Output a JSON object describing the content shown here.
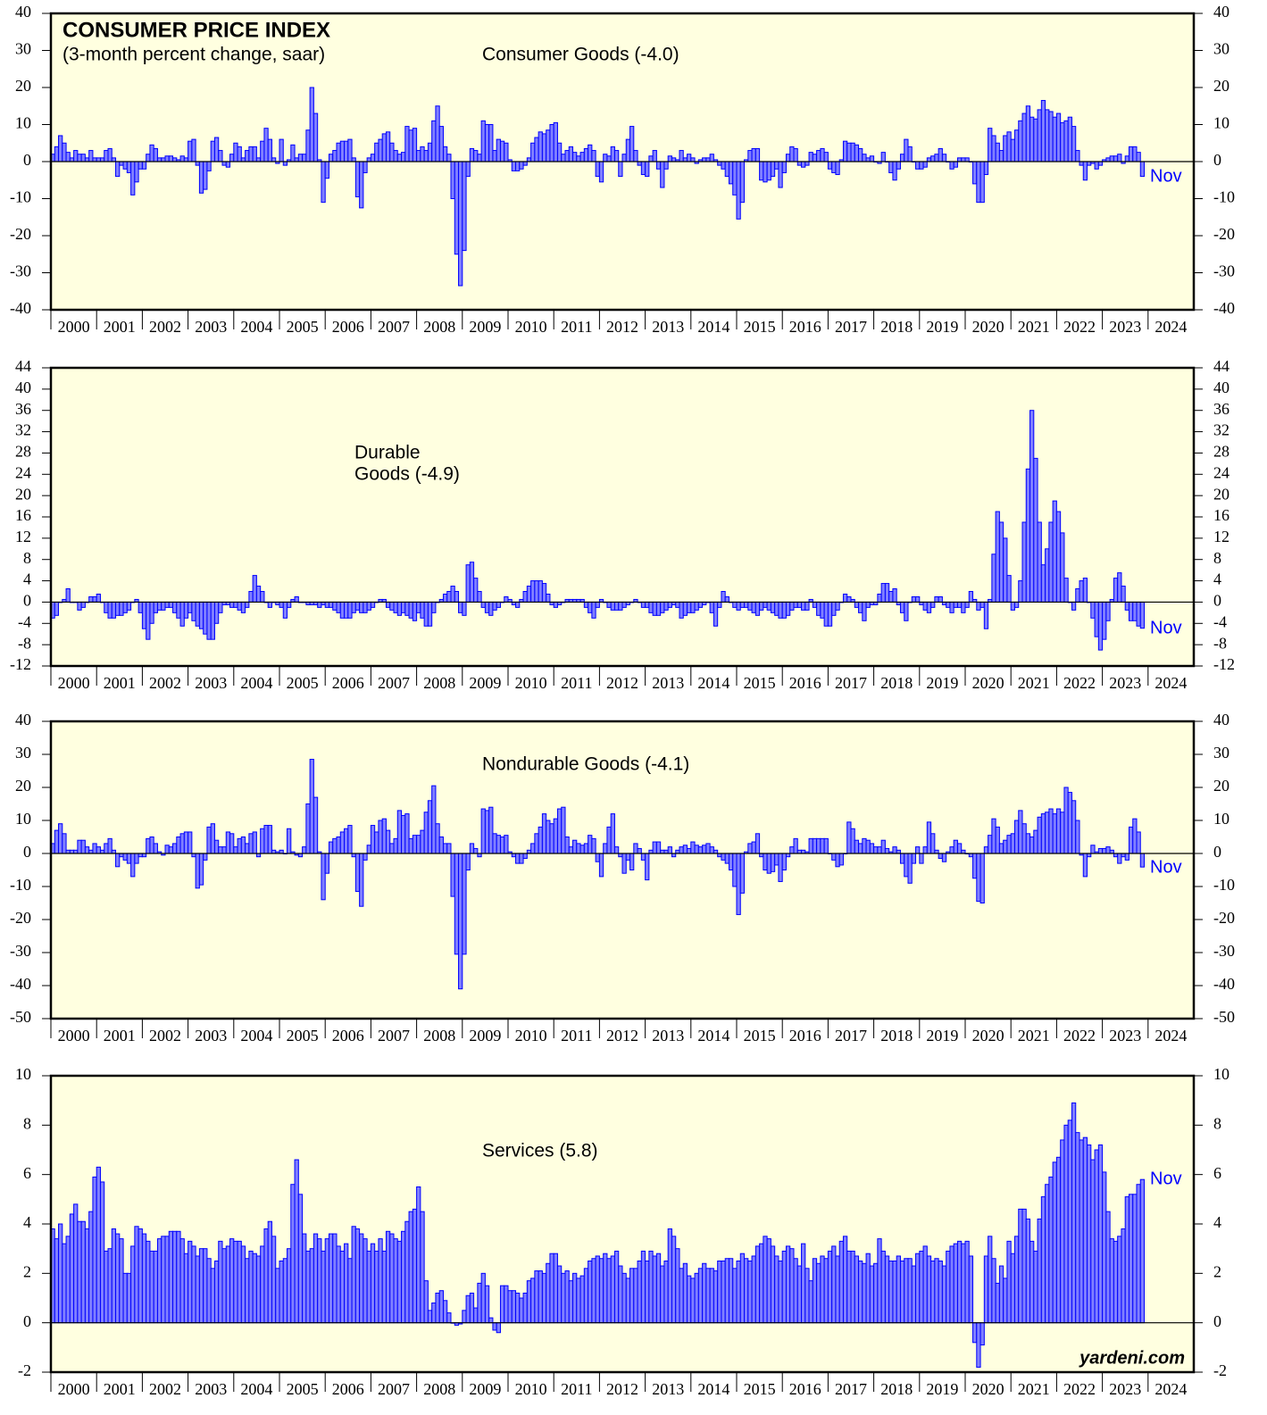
{
  "chart_data": [
    {
      "type": "bar",
      "title": "CONSUMER PRICE INDEX",
      "subtitle": "(3-month percent change, saar)",
      "label": "Consumer Goods (-4.0)",
      "annotation": "Nov",
      "color": "#8080ff",
      "edgecolor": "#0000ff",
      "xlim": [
        2000,
        2025
      ],
      "xticks": [
        2000,
        2001,
        2002,
        2003,
        2004,
        2005,
        2006,
        2007,
        2008,
        2009,
        2010,
        2011,
        2012,
        2013,
        2014,
        2015,
        2016,
        2017,
        2018,
        2019,
        2020,
        2021,
        2022,
        2023,
        2024
      ],
      "ylim": [
        -40,
        40
      ],
      "yticks": [
        -40,
        -30,
        -20,
        -10,
        0,
        10,
        20,
        30,
        40
      ],
      "values": [
        2,
        4,
        7,
        5,
        2.5,
        1,
        3,
        2,
        2,
        1,
        3,
        1,
        1,
        1,
        3,
        3.5,
        1,
        -4,
        -1,
        -2,
        -3,
        -9,
        -5.5,
        -2,
        -2,
        2,
        4.5,
        3.5,
        1,
        1,
        1.5,
        1.5,
        1,
        0.5,
        1.5,
        1,
        5.5,
        6,
        -1,
        -8.5,
        -7.5,
        -2.5,
        5.5,
        6.5,
        3,
        -1,
        -1.5,
        2,
        5,
        4,
        1,
        3,
        4,
        4,
        1,
        5.5,
        9,
        6,
        1,
        -0.5,
        6,
        -1,
        0.5,
        4.5,
        1,
        2,
        2,
        8.5,
        20,
        13,
        0.5,
        -11,
        -4.5,
        2,
        3,
        5,
        5.5,
        5.5,
        6,
        1,
        -9.5,
        -12.5,
        -3,
        1,
        2,
        5,
        6,
        7.5,
        8,
        5,
        3,
        2,
        2.5,
        9.5,
        8.5,
        9,
        3,
        4,
        3,
        5,
        11,
        15,
        9.5,
        4,
        2,
        -10,
        -25,
        -33.5,
        -24,
        -4,
        3.5,
        3,
        2,
        11,
        10,
        10,
        3,
        6,
        5.5,
        5,
        0.5,
        -2.5,
        -2.5,
        -2,
        -1,
        1,
        5,
        6.5,
        8,
        7.5,
        8.5,
        10,
        10.5,
        5,
        2,
        3,
        4,
        2.5,
        1.5,
        2.5,
        3.5,
        4.5,
        3,
        -4,
        -5.5,
        2,
        1.5,
        4,
        3,
        -4,
        2,
        6,
        9.5,
        3,
        -1,
        -3.5,
        -4,
        1.5,
        3,
        -2,
        -7,
        -2,
        1.5,
        1,
        0.5,
        3,
        1,
        2,
        1,
        -0.5,
        0.5,
        1,
        1,
        2,
        0.5,
        -1,
        -2,
        -4,
        -6,
        -9,
        -15.5,
        -11,
        0.5,
        3,
        3.5,
        3.5,
        -5,
        -5.5,
        -5,
        -4,
        -2,
        -7,
        -3,
        2,
        4,
        3.5,
        -1,
        -1.5,
        -1,
        2.5,
        2,
        3,
        3.5,
        2.5,
        -2,
        -3,
        -3.5,
        0.5,
        5.5,
        5,
        5,
        4.5,
        3.5,
        2,
        1,
        1.5,
        0,
        -0.5,
        2.5,
        0,
        -3,
        -5,
        -2,
        2,
        6,
        4,
        0,
        -2,
        -2,
        -1.5,
        1,
        1.5,
        2,
        3.5,
        2,
        0,
        -2,
        -1.5,
        1,
        1,
        1,
        0,
        -6,
        -11,
        -11,
        -3.5,
        9,
        7,
        5,
        3,
        7,
        8,
        6,
        8.5,
        11,
        13,
        15,
        12,
        11.5,
        14,
        16.5,
        14,
        13.5,
        12,
        13,
        10.5,
        11,
        12,
        9.5,
        3,
        -1,
        -5,
        -1,
        -0.5,
        -2,
        -1,
        0.5,
        1,
        1.5,
        1.5,
        2,
        -0.5,
        1.5,
        4,
        4,
        2.5,
        -4
      ]
    },
    {
      "type": "bar",
      "label": [
        "Durable",
        "Goods (-4.9)"
      ],
      "annotation": "Nov",
      "color": "#8080ff",
      "edgecolor": "#0000ff",
      "xlim": [
        2000,
        2025
      ],
      "xticks": [
        2000,
        2001,
        2002,
        2003,
        2004,
        2005,
        2006,
        2007,
        2008,
        2009,
        2010,
        2011,
        2012,
        2013,
        2014,
        2015,
        2016,
        2017,
        2018,
        2019,
        2020,
        2021,
        2022,
        2023,
        2024
      ],
      "ylim": [
        -12,
        44
      ],
      "yticks": [
        -12,
        -8,
        -4,
        0,
        4,
        8,
        12,
        16,
        20,
        24,
        28,
        32,
        36,
        40,
        44
      ],
      "values": [
        -3,
        -2.5,
        0,
        0.5,
        2.5,
        0,
        0,
        -1.5,
        -1,
        0,
        1,
        1,
        1.5,
        0,
        -2,
        -3,
        -3,
        -2.5,
        -2.5,
        -2,
        -1.5,
        0,
        0.5,
        -2,
        -5,
        -7,
        -4,
        -2,
        -1.5,
        -1.5,
        -1,
        -1,
        -2,
        -3,
        -4.5,
        -3,
        -2,
        -3.5,
        -4.5,
        -5,
        -6,
        -7,
        -7,
        -4,
        -2,
        -0.5,
        -0.5,
        -1,
        -1,
        -1.5,
        -2,
        -1,
        2,
        5,
        3,
        2,
        0,
        -1,
        0,
        -0.5,
        -1,
        -3,
        -1,
        0.5,
        1,
        0,
        0,
        -0.5,
        -0.5,
        -0.5,
        -1,
        -0.5,
        -1,
        -1,
        -1.5,
        -2,
        -3,
        -3,
        -3,
        -2,
        -1.5,
        -2,
        -2,
        -1.5,
        -1,
        0,
        0.5,
        0.5,
        -1,
        -1.5,
        -2,
        -2.5,
        -2,
        -2.5,
        -3,
        -3.5,
        -2,
        -3,
        -4.5,
        -4.5,
        -2,
        0,
        0.5,
        1.5,
        2,
        3,
        2,
        -2,
        -2.5,
        7,
        7.5,
        4.5,
        2,
        -1,
        -2,
        -2.5,
        -1.5,
        -1,
        0,
        1,
        0.5,
        -0.5,
        -1,
        0.5,
        2,
        3,
        4,
        4,
        4,
        3.5,
        1.5,
        -0.5,
        -1,
        -0.5,
        0,
        0.5,
        0.5,
        0.5,
        0.5,
        0.5,
        -1,
        -2,
        -3,
        -1,
        0.5,
        0,
        -1,
        -1.5,
        -1.5,
        -1.5,
        -1,
        -0.5,
        0,
        0.5,
        0,
        -1,
        -1,
        -2,
        -2.5,
        -2.5,
        -2,
        -1.5,
        -1,
        -0.5,
        -1,
        -3,
        -2.5,
        -2,
        -2,
        -1.5,
        -1,
        -0.5,
        0,
        -2,
        -4.5,
        -1,
        2,
        1,
        0,
        -1,
        -1.5,
        -1,
        -1,
        -1.5,
        -2,
        -2.5,
        -1.5,
        -1,
        -1.5,
        -2,
        -2.5,
        -3,
        -3,
        -2.5,
        -1.5,
        -1,
        -1,
        -1.5,
        -1.5,
        0.5,
        -1,
        -2.5,
        -3,
        -4.5,
        -4.5,
        -2.5,
        -1.5,
        0,
        1.5,
        1,
        0.5,
        -1,
        -2,
        -3.5,
        -1,
        -0.5,
        -0.5,
        1.5,
        3.5,
        3.5,
        2,
        2.5,
        -0.5,
        -2,
        -3.5,
        0,
        1,
        1,
        -0.5,
        -1.5,
        -2,
        -1,
        1,
        1,
        -0.5,
        -1,
        -2,
        -1,
        -1,
        -2,
        -1,
        2,
        0.5,
        -1.5,
        -1,
        -5,
        0.5,
        9,
        17,
        15,
        12,
        5,
        -1.5,
        -1,
        4,
        15,
        25,
        36,
        27,
        15,
        7,
        10,
        15,
        19,
        17,
        13,
        4.5,
        0,
        -1.5,
        2.5,
        4,
        4.5,
        0,
        -3,
        -6.5,
        -9,
        -7,
        -3.5,
        0.5,
        4.5,
        5.5,
        3,
        -1.5,
        -3.5,
        -3.5,
        -4.5,
        -4.9
      ]
    },
    {
      "type": "bar",
      "label": "Nondurable Goods (-4.1)",
      "annotation": "Nov",
      "color": "#8080ff",
      "edgecolor": "#0000ff",
      "xlim": [
        2000,
        2025
      ],
      "xticks": [
        2000,
        2001,
        2002,
        2003,
        2004,
        2005,
        2006,
        2007,
        2008,
        2009,
        2010,
        2011,
        2012,
        2013,
        2014,
        2015,
        2016,
        2017,
        2018,
        2019,
        2020,
        2021,
        2022,
        2023,
        2024
      ],
      "ylim": [
        -50,
        40
      ],
      "yticks": [
        -50,
        -40,
        -30,
        -20,
        -10,
        0,
        10,
        20,
        30,
        40
      ],
      "values": [
        3,
        7,
        9,
        6,
        1,
        1,
        1,
        4,
        4,
        2,
        1,
        3,
        2,
        1,
        3,
        4.5,
        1,
        -4,
        -1,
        -2,
        -3,
        -7,
        -3,
        -1,
        -1,
        4.5,
        5,
        3,
        0.5,
        -0.5,
        2.5,
        2,
        3,
        5,
        6,
        6.5,
        6.5,
        -1,
        -10.5,
        -9.5,
        -2,
        8,
        9,
        4,
        2,
        2,
        6.5,
        6,
        2,
        4.5,
        5,
        3,
        6,
        6.5,
        -1,
        7.5,
        8.5,
        8.5,
        1,
        0.5,
        1,
        0,
        7.5,
        0.5,
        -0.5,
        -1,
        2,
        15,
        28.5,
        17,
        0.5,
        -14,
        -6,
        3.5,
        4.5,
        5,
        6.5,
        7.5,
        8.5,
        -1,
        -11.5,
        -16,
        -2,
        2.5,
        8.5,
        6.5,
        10,
        10.5,
        7,
        3,
        4.5,
        13,
        11.5,
        12,
        4.5,
        5.5,
        5.5,
        7,
        12.5,
        16,
        20.5,
        9,
        5,
        3,
        3,
        -13,
        -30.5,
        -41,
        -30.5,
        -5,
        3,
        1.5,
        -1,
        13.5,
        13,
        14,
        6,
        5.5,
        5,
        5.5,
        0.5,
        -1,
        -3,
        -3,
        -1.5,
        1,
        3,
        6,
        8,
        12,
        10,
        9,
        10.5,
        13.5,
        14,
        5,
        2,
        4,
        3,
        2.5,
        3,
        5.5,
        4.5,
        -2.5,
        -7,
        3,
        8,
        12,
        2,
        -1,
        -6,
        -2,
        -5,
        3,
        1.5,
        -2,
        -8,
        1,
        3.5,
        3.5,
        1,
        1,
        2,
        -1,
        1,
        2,
        2.5,
        1.5,
        3.5,
        2.5,
        2,
        2.5,
        3,
        2,
        1,
        -1,
        -2,
        -3,
        -5,
        -10,
        -18.5,
        -12,
        0.5,
        3,
        3.5,
        6,
        -1,
        -5,
        -6,
        -5.5,
        -3.5,
        -8.5,
        -5,
        -1,
        2,
        4.5,
        1,
        1,
        0.5,
        4.5,
        4.5,
        4.5,
        4.5,
        4.5,
        0,
        -2,
        -4,
        -3.5,
        0,
        9.5,
        7.5,
        4,
        3,
        4.5,
        4,
        3,
        2,
        2,
        4,
        1.5,
        0.5,
        2,
        1,
        -3,
        -7,
        -9,
        -3,
        2,
        -3,
        2,
        9.5,
        6,
        1,
        -1.5,
        -2.5,
        0.5,
        2,
        4,
        3,
        1,
        0,
        -1,
        -7.5,
        -14.5,
        -15,
        2,
        5.5,
        10.5,
        8,
        3,
        4,
        5.5,
        6,
        10,
        13,
        9,
        6,
        5,
        7,
        11,
        12,
        12.5,
        13.5,
        12,
        13.5,
        12.5,
        20,
        18.5,
        16,
        10,
        -0.5,
        -7,
        -1,
        2.5,
        0.5,
        1.5,
        1.5,
        2,
        1,
        -1,
        -3,
        -1,
        -2,
        8,
        10.5,
        6.5,
        -4.1
      ]
    },
    {
      "type": "bar",
      "label": "Services (5.8)",
      "annotation": "Nov",
      "source": "yardeni.com",
      "color": "#8080ff",
      "edgecolor": "#0000ff",
      "xlim": [
        2000,
        2025
      ],
      "xticks": [
        2000,
        2001,
        2002,
        2003,
        2004,
        2005,
        2006,
        2007,
        2008,
        2009,
        2010,
        2011,
        2012,
        2013,
        2014,
        2015,
        2016,
        2017,
        2018,
        2019,
        2020,
        2021,
        2022,
        2023,
        2024
      ],
      "ylim": [
        -2,
        10
      ],
      "yticks": [
        -2,
        0,
        2,
        4,
        6,
        8,
        10
      ],
      "values": [
        3.8,
        3.4,
        4,
        3.2,
        3.5,
        4.4,
        4.8,
        4.1,
        4.1,
        3.8,
        4.5,
        5.9,
        6.3,
        5.7,
        2.9,
        3,
        3.8,
        3.6,
        3.4,
        2,
        2,
        3.1,
        3.9,
        3.8,
        3.6,
        3.3,
        2.9,
        2.9,
        3.4,
        3.5,
        3.5,
        3.7,
        3.7,
        3.7,
        3.4,
        2.8,
        3.3,
        3.1,
        2.7,
        3,
        3,
        2.6,
        2.2,
        2.5,
        3.3,
        3,
        3.1,
        3.4,
        3.3,
        3.3,
        3.1,
        2.6,
        2.9,
        2.8,
        2.7,
        3.1,
        3.8,
        4.1,
        3.5,
        2.2,
        2.5,
        2.6,
        3,
        5.6,
        6.6,
        5.2,
        3.6,
        2.9,
        3,
        3.6,
        3.4,
        2.9,
        3.4,
        3.6,
        3.6,
        3.1,
        2.9,
        3.2,
        2.6,
        3.9,
        3.8,
        3.6,
        3.4,
        2.9,
        3.2,
        2.9,
        3.4,
        2.9,
        3.7,
        3.6,
        3.4,
        3.3,
        3.7,
        4.1,
        4.5,
        4.6,
        5.5,
        4.5,
        1.7,
        0.5,
        0.8,
        1.2,
        1.3,
        0.9,
        0.4,
        0,
        -0.1,
        -0.05,
        0.5,
        1.1,
        1.2,
        0.6,
        1.6,
        2,
        1.5,
        0.2,
        -0.3,
        -0.4,
        1.5,
        1.5,
        1.3,
        1.3,
        1.2,
        1,
        1.2,
        1.7,
        1.8,
        2.1,
        2.1,
        2,
        2.4,
        2.8,
        2.8,
        2.3,
        2,
        2.1,
        1.7,
        2,
        1.8,
        1.9,
        2.2,
        2.5,
        2.6,
        2.7,
        2.6,
        2.8,
        2.6,
        2.7,
        2.9,
        2.3,
        2,
        1.8,
        2.2,
        2.2,
        2.5,
        2.9,
        2.5,
        2.9,
        2.7,
        2.8,
        2.3,
        2.5,
        3.8,
        3.5,
        3,
        2.2,
        2.4,
        1.9,
        1.8,
        2,
        2.2,
        2.4,
        2.2,
        2.2,
        2.1,
        2.5,
        2.5,
        2.6,
        2.6,
        2.2,
        2.5,
        2.8,
        2.6,
        2.5,
        2.7,
        3.1,
        3.2,
        3.5,
        3.4,
        3.1,
        2.7,
        2.5,
        2.9,
        3.1,
        3,
        2.6,
        2.3,
        3.2,
        2.2,
        1.7,
        2.6,
        2.4,
        2.7,
        2.6,
        2.9,
        3.1,
        2.7,
        3.3,
        3.5,
        2.9,
        2.9,
        2.7,
        2.5,
        2.4,
        2.8,
        2.3,
        2.4,
        3.4,
        2.9,
        2.7,
        2.5,
        2.5,
        2.7,
        2.5,
        2.6,
        2.6,
        2.3,
        2.8,
        2.9,
        3.1,
        2.7,
        2.5,
        2.6,
        2.5,
        2.3,
        2.9,
        3.1,
        3.2,
        3.3,
        3.2,
        3.3,
        2.7,
        -0.8,
        -1.8,
        -0.9,
        2.7,
        3.5,
        2.6,
        1.6,
        2.3,
        1.8,
        3.3,
        2.8,
        3.5,
        4.6,
        4.6,
        4.2,
        3.3,
        2.9,
        4.2,
        5.1,
        5.6,
        5.9,
        6.5,
        6.7,
        7.4,
        8,
        8.2,
        8.9,
        7.7,
        7.4,
        7.5,
        7.2,
        6.6,
        7,
        7.2,
        6.1,
        4.5,
        3.4,
        3.3,
        3.5,
        3.8,
        5.1,
        5.2,
        5.2,
        5.6,
        5.8
      ]
    }
  ]
}
